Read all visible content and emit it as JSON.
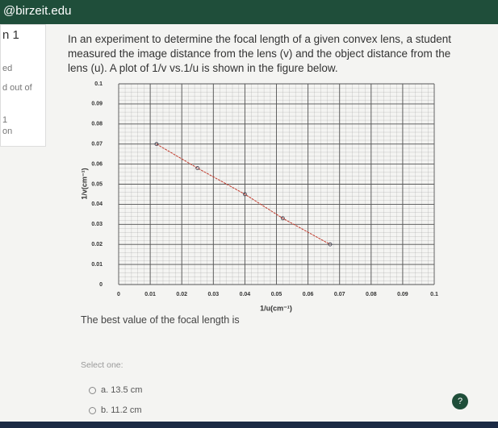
{
  "header": {
    "title": "@birzeit.edu"
  },
  "sidebar": {
    "items": [
      "n 1",
      "ed",
      "d out of",
      "1",
      "on"
    ]
  },
  "question": {
    "text": "In an experiment to determine the focal length of a given convex lens, a student measured the image distance from the lens (v) and the object distance from the lens (u). A plot of 1/v vs.1/u is shown in the figure below.",
    "prompt": "The best value of the focal length is",
    "select": "Select one:",
    "options": [
      "a.  13.5 cm",
      "b.  11.2 cm"
    ],
    "help": "?"
  },
  "chart_data": {
    "type": "line",
    "x_label": "1/u(cm⁻¹)",
    "y_label": "1/v(cm⁻¹)",
    "x": [
      0.012,
      0.025,
      0.04,
      0.052,
      0.067
    ],
    "series": [
      {
        "color": "#c0392b",
        "values": [
          0.07,
          0.058,
          0.045,
          0.033,
          0.02
        ]
      }
    ],
    "xlim": [
      0,
      0.1
    ],
    "ylim": [
      0,
      0.1
    ],
    "xticks": [
      0,
      0.01,
      0.02,
      0.03,
      0.04,
      0.05,
      0.06,
      0.07,
      0.08,
      0.09,
      0.1
    ],
    "yticks": [
      0,
      0.01,
      0.02,
      0.03,
      0.04,
      0.05,
      0.06,
      0.07,
      0.08,
      0.09,
      0.1
    ],
    "grid": true
  }
}
